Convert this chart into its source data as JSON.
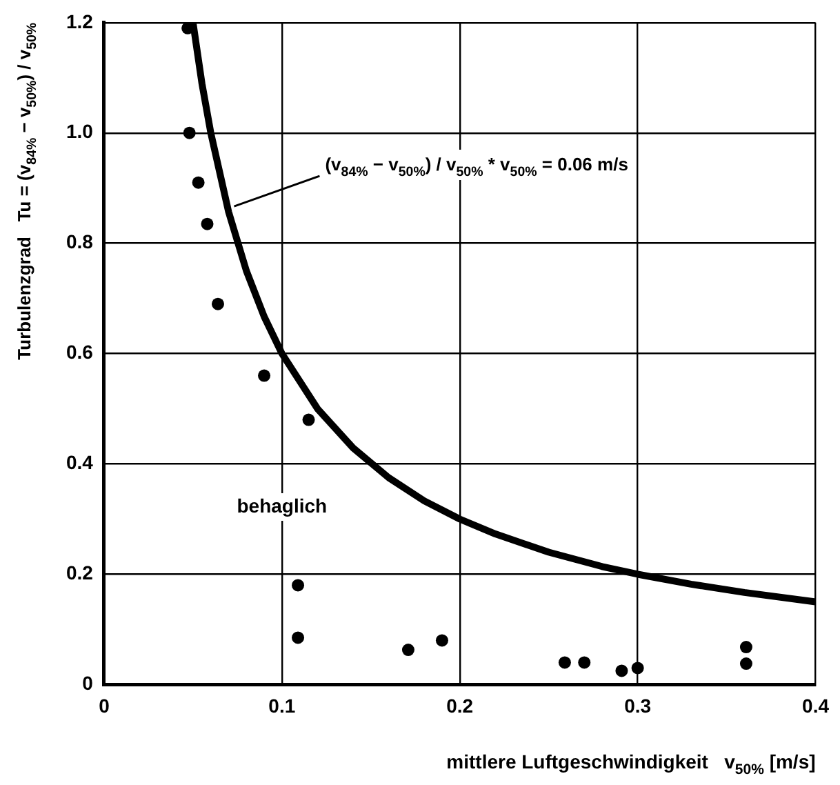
{
  "chart_data": {
    "type": "scatter",
    "xlabel": "mittlere Luftgeschwindigkeit   v$_{50%}$ [m/s]",
    "ylabel": "Turbulenzgrad   Tu = (v$_{84%}$ − v$_{50%}$) / v$_{50%}$",
    "xlim": [
      0,
      0.4
    ],
    "xticks": [
      0,
      0.1,
      0.2,
      0.3,
      0.4
    ],
    "ylim": [
      0,
      1.2
    ],
    "yticks": [
      0,
      0.2,
      0.4,
      0.6,
      0.8,
      {
        "value": 1,
        "label": "1.0"
      },
      1.2
    ],
    "grid": true,
    "legend": false,
    "series": [
      {
        "type": "scatter",
        "marker": "circle",
        "color": "#000000",
        "x": [
          0.047,
          0.048,
          0.053,
          0.058,
          0.064,
          0.09,
          0.115,
          0.109,
          0.109,
          0.171,
          0.19,
          0.259,
          0.27,
          0.291,
          0.3,
          0.361,
          0.361
        ],
        "values": [
          1.19,
          1.0,
          0.91,
          0.835,
          0.69,
          0.56,
          0.48,
          0.18,
          0.085,
          0.063,
          0.08,
          0.04,
          0.04,
          0.025,
          0.03,
          0.068,
          0.038
        ]
      },
      {
        "type": "line",
        "marker": "none",
        "color": "#000000",
        "x": [
          0.05,
          0.055,
          0.06,
          0.07,
          0.08,
          0.09,
          0.1,
          0.12,
          0.14,
          0.16,
          0.18,
          0.2,
          0.22,
          0.25,
          0.28,
          0.3,
          0.33,
          0.36,
          0.4
        ],
        "values": [
          1.2,
          1.09,
          1.0,
          0.857,
          0.75,
          0.667,
          0.6,
          0.5,
          0.429,
          0.375,
          0.333,
          0.3,
          0.273,
          0.24,
          0.214,
          0.2,
          0.182,
          0.167,
          0.15
        ]
      }
    ],
    "annotations": [
      "(v$_{84%}$ − v$_{50%}$) / v$_{50%}$ * v$_{50%}$ = 0.06 m/s",
      "behaglich"
    ]
  }
}
